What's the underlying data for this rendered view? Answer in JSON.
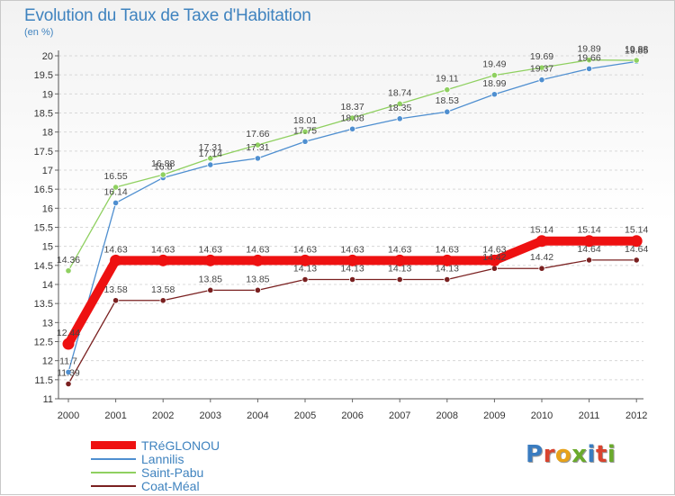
{
  "header": {
    "title": "Evolution du Taux de Taxe d'Habitation",
    "unit": "(en %)"
  },
  "logo": {
    "text": "Proxiti",
    "colors": [
      "#3a7cc0",
      "#d9442e",
      "#e7a21a",
      "#6aaa2c",
      "#3a7cc0",
      "#d9442e",
      "#6aaa2c"
    ]
  },
  "chart_data": {
    "type": "line",
    "title": "Evolution du Taux de Taxe d'Habitation",
    "ylabel": "(en %)",
    "xlabel": "",
    "ylim": [
      11,
      20
    ],
    "yticks": [
      "11",
      "11.5",
      "12",
      "12.5",
      "13",
      "13.5",
      "14",
      "14.5",
      "15",
      "15.5",
      "16",
      "16.5",
      "17",
      "17.5",
      "18",
      "18.5",
      "19",
      "19.5",
      "20"
    ],
    "categories": [
      "2000",
      "2001",
      "2002",
      "2003",
      "2004",
      "2005",
      "2006",
      "2007",
      "2008",
      "2009",
      "2010",
      "2011",
      "2012"
    ],
    "grid": "horizontal dashed",
    "legend_position": "bottom-left",
    "series": [
      {
        "name": "Coat-Méal",
        "color": "#7a2020",
        "values": [
          11.39,
          13.58,
          13.58,
          13.85,
          13.85,
          14.13,
          14.13,
          14.13,
          14.13,
          14.42,
          14.42,
          14.64,
          14.64
        ],
        "labels": [
          "11.39",
          "13.58",
          "13.58",
          "13.85",
          "13.85",
          "14.13",
          "14.13",
          "14.13",
          "14.13",
          "14.42",
          "14.42",
          "14.64",
          "14.64"
        ]
      },
      {
        "name": "Lannilis",
        "color": "#4f8fd0",
        "values": [
          11.7,
          16.14,
          16.8,
          17.14,
          17.31,
          17.75,
          18.08,
          18.35,
          18.53,
          18.99,
          19.37,
          19.66,
          19.85
        ],
        "labels": [
          "11.7",
          "16.14",
          "16.8",
          "17.14",
          "17.31",
          "17.75",
          "18.08",
          "18.35",
          "18.53",
          "18.99",
          "19.37",
          "19.66",
          "19.85"
        ]
      },
      {
        "name": "Saint-Pabu",
        "color": "#8fd060",
        "values": [
          14.36,
          16.55,
          16.88,
          17.31,
          17.66,
          18.01,
          18.37,
          18.74,
          19.11,
          19.49,
          19.69,
          19.89,
          19.88
        ],
        "labels": [
          "14.36",
          "16.55",
          "16.88",
          "17.31",
          "17.66",
          "18.01",
          "18.37",
          "18.74",
          "19.11",
          "19.49",
          "19.69",
          "19.89",
          "19.88"
        ]
      },
      {
        "name": "TRéGLONOU",
        "color": "#ee1111",
        "values": [
          12.44,
          14.63,
          14.63,
          14.63,
          14.63,
          14.63,
          14.63,
          14.63,
          14.63,
          14.63,
          15.14,
          15.14,
          15.14
        ],
        "labels": [
          "12.44",
          "14.63",
          "14.63",
          "14.63",
          "14.63",
          "14.63",
          "14.63",
          "14.63",
          "14.63",
          "14.63",
          "15.14",
          "15.14",
          "15.14"
        ]
      }
    ],
    "legend": [
      "TRéGLONOU",
      "Lannilis",
      "Saint-Pabu",
      "Coat-Méal"
    ]
  }
}
